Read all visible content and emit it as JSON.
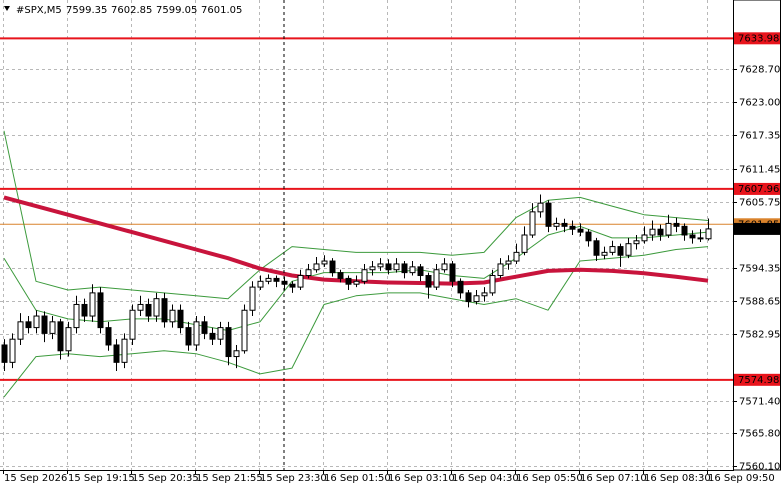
{
  "header": {
    "symbol": "#SPX,M5",
    "ohlc": [
      7599.35,
      7602.85,
      7599.05,
      7601.05
    ]
  },
  "chart_data": {
    "type": "candlestick",
    "categories": [
      "15 Sep 2026",
      null,
      null,
      null,
      null,
      null,
      null,
      null,
      "15 Sep 19:15",
      null,
      null,
      null,
      null,
      null,
      null,
      null,
      "15 Sep 20:35",
      null,
      null,
      null,
      null,
      null,
      null,
      null,
      "15 Sep 21:55",
      null,
      null,
      null,
      null,
      null,
      null,
      null,
      "15 Sep 23:30",
      null,
      null,
      null,
      null,
      null,
      null,
      null,
      "16 Sep 01:50",
      null,
      null,
      null,
      null,
      null,
      null,
      null,
      "16 Sep 03:10",
      null,
      null,
      null,
      null,
      null,
      null,
      null,
      "16 Sep 04:30",
      null,
      null,
      null,
      null,
      null,
      null,
      null,
      "16 Sep 05:50",
      null,
      null,
      null,
      null,
      null,
      null,
      null,
      "16 Sep 07:10",
      null,
      null,
      null,
      null,
      null,
      null,
      null,
      "16 Sep 08:30",
      null,
      null,
      null,
      null,
      null,
      null,
      null,
      "16 Sep 09:50"
    ],
    "candles": [
      [
        7581,
        7582,
        7576.5,
        7578
      ],
      [
        7578,
        7583,
        7577,
        7582
      ],
      [
        7582,
        7586.5,
        7581,
        7585
      ],
      [
        7585,
        7586,
        7583,
        7584
      ],
      [
        7584,
        7587,
        7583,
        7586
      ],
      [
        7586,
        7586.8,
        7581.5,
        7583
      ],
      [
        7583,
        7586,
        7582,
        7585
      ],
      [
        7585,
        7585.5,
        7578.5,
        7580
      ],
      [
        7580,
        7585,
        7579,
        7584
      ],
      [
        7584,
        7589.5,
        7583,
        7588
      ],
      [
        7588,
        7589,
        7585,
        7586
      ],
      [
        7586,
        7591.5,
        7585,
        7590
      ],
      [
        7590,
        7591,
        7583,
        7584
      ],
      [
        7584,
        7585,
        7580,
        7581
      ],
      [
        7581,
        7582,
        7576.5,
        7578
      ],
      [
        7578,
        7583,
        7577,
        7582
      ],
      [
        7582,
        7588,
        7581,
        7587
      ],
      [
        7587,
        7589.5,
        7586,
        7588
      ],
      [
        7588,
        7589,
        7585,
        7586
      ],
      [
        7586,
        7590,
        7585,
        7589
      ],
      [
        7589,
        7590,
        7584,
        7585
      ],
      [
        7585,
        7588,
        7584,
        7587
      ],
      [
        7587,
        7588,
        7583,
        7584
      ],
      [
        7584,
        7585,
        7580,
        7581
      ],
      [
        7581,
        7586,
        7580,
        7585
      ],
      [
        7585,
        7586,
        7582,
        7583
      ],
      [
        7583,
        7584,
        7581,
        7582
      ],
      [
        7582,
        7585,
        7581,
        7584
      ],
      [
        7584,
        7585,
        7577.5,
        7579
      ],
      [
        7579,
        7581,
        7577,
        7580
      ],
      [
        7580,
        7588,
        7579.5,
        7587
      ],
      [
        7587,
        7592,
        7586,
        7591
      ],
      [
        7591,
        7593,
        7590.5,
        7592
      ],
      [
        7592,
        7593.2,
        7591.5,
        7592.5
      ],
      [
        7592.5,
        7593,
        7591,
        7592
      ],
      [
        7592,
        7592.8,
        7590.5,
        7591.5
      ],
      [
        7591.5,
        7592,
        7590,
        7591
      ],
      [
        7591,
        7594,
        7590.5,
        7593
      ],
      [
        7593,
        7595,
        7592.5,
        7594
      ],
      [
        7594,
        7596.2,
        7593.5,
        7595
      ],
      [
        7595,
        7596.5,
        7594.5,
        7595.5
      ],
      [
        7595.5,
        7596,
        7592.8,
        7593.5
      ],
      [
        7593.5,
        7594,
        7591.8,
        7592.5
      ],
      [
        7592.5,
        7593,
        7590.5,
        7591.5
      ],
      [
        7591.5,
        7593,
        7591,
        7592
      ],
      [
        7592,
        7595,
        7591.5,
        7594
      ],
      [
        7594,
        7595.5,
        7593,
        7594.5
      ],
      [
        7594.5,
        7596,
        7593.8,
        7595
      ],
      [
        7595,
        7595.8,
        7593.2,
        7594
      ],
      [
        7594,
        7596,
        7593.5,
        7595
      ],
      [
        7595,
        7595.5,
        7592.5,
        7593.5
      ],
      [
        7593.5,
        7595.5,
        7593,
        7594.5
      ],
      [
        7594.5,
        7595,
        7592,
        7593
      ],
      [
        7593,
        7593.5,
        7589,
        7591
      ],
      [
        7591,
        7595,
        7590.5,
        7594
      ],
      [
        7594,
        7596,
        7593.5,
        7595
      ],
      [
        7595,
        7595.5,
        7591,
        7592
      ],
      [
        7592,
        7592.5,
        7589,
        7590
      ],
      [
        7590,
        7590.5,
        7587.5,
        7588.5
      ],
      [
        7588.5,
        7590.5,
        7588,
        7589.5
      ],
      [
        7589.5,
        7591,
        7588.5,
        7590
      ],
      [
        7590,
        7594,
        7589.5,
        7593
      ],
      [
        7593,
        7596,
        7592.5,
        7595
      ],
      [
        7595,
        7596.5,
        7594,
        7595.5
      ],
      [
        7595.5,
        7598.5,
        7595,
        7597
      ],
      [
        7597,
        7601.5,
        7596.5,
        7600
      ],
      [
        7600,
        7605.5,
        7599.5,
        7604
      ],
      [
        7604,
        7607,
        7603,
        7605.5
      ],
      [
        7605.5,
        7606,
        7600.5,
        7601.5
      ],
      [
        7601.5,
        7603,
        7600.8,
        7602
      ],
      [
        7602,
        7602.8,
        7600.5,
        7601.5
      ],
      [
        7601.5,
        7602.5,
        7600,
        7601
      ],
      [
        7601,
        7602,
        7599.8,
        7600.5
      ],
      [
        7600.5,
        7601,
        7598,
        7599
      ],
      [
        7599,
        7599.5,
        7595.5,
        7596.5
      ],
      [
        7596.5,
        7598,
        7595.8,
        7597
      ],
      [
        7597,
        7599,
        7596.5,
        7598
      ],
      [
        7598,
        7598.5,
        7594.5,
        7596.5
      ],
      [
        7596.5,
        7599.5,
        7596,
        7598.5
      ],
      [
        7598.5,
        7600,
        7597.5,
        7599
      ],
      [
        7599,
        7601.5,
        7598.5,
        7600
      ],
      [
        7600,
        7602.5,
        7599,
        7601
      ],
      [
        7601,
        7601.8,
        7599,
        7600
      ],
      [
        7600,
        7603.5,
        7599.5,
        7602
      ],
      [
        7602,
        7603,
        7600.5,
        7601.5
      ],
      [
        7601.5,
        7602,
        7599,
        7600
      ],
      [
        7600,
        7600.8,
        7598.5,
        7599.5
      ],
      [
        7599.5,
        7601,
        7598.8,
        7599.35
      ],
      [
        7599.35,
        7602.85,
        7599.05,
        7601.05
      ]
    ],
    "overlay_x": [
      0,
      4,
      8,
      12,
      16,
      20,
      24,
      28,
      32,
      36,
      40,
      44,
      48,
      52,
      56,
      60,
      64,
      68,
      72,
      76,
      80,
      84,
      88
    ],
    "overlays": [
      {
        "color": "#3c9a3c",
        "width": 1,
        "values": [
          7618,
          7592,
          7590.5,
          7591,
          7590.5,
          7590,
          7589.5,
          7589,
          7594,
          7598,
          7597.5,
          7597,
          7597,
          7597,
          7596.5,
          7597,
          7603,
          7606,
          7606.5,
          7605,
          7603.5,
          7603,
          7602.5
        ]
      },
      {
        "color": "#3c9a3c",
        "width": 1,
        "values": [
          7596,
          7587,
          7585.5,
          7585,
          7585.5,
          7585.5,
          7584.5,
          7583.5,
          7585,
          7592,
          7593.5,
          7593.5,
          7593.5,
          7594,
          7593,
          7592.5,
          7596,
          7600,
          7601.5,
          7599.5,
          7599.5,
          7600,
          7600.5
        ]
      },
      {
        "color": "#3c9a3c",
        "width": 1,
        "values": [
          7572,
          7579,
          7579.5,
          7579,
          7579.5,
          7580,
          7579.5,
          7578,
          7576,
          7577,
          7588,
          7589.5,
          7590,
          7590,
          7589,
          7588,
          7589,
          7587,
          7595.5,
          7596,
          7596.5,
          7597.5,
          7598
        ]
      },
      {
        "color": "#c8143c",
        "width": 4,
        "values": [
          7606.5,
          7605,
          7603.5,
          7602,
          7600.5,
          7599,
          7597.5,
          7596,
          7594.2,
          7593,
          7592.3,
          7592,
          7591.8,
          7591.7,
          7591.6,
          7591.8,
          7592.8,
          7593.8,
          7594,
          7593.8,
          7593.4,
          7592.8,
          7592.1
        ]
      }
    ],
    "levels": [
      7633.98,
      7607.96,
      7574.98
    ],
    "level_color": "#e8141c",
    "ask_price": 7601.85,
    "ask_color": "#d9822b",
    "last_price": 7601.05,
    "ylim": [
      7559.4,
      7640.6
    ],
    "yticks": [
      {
        "value": 7628.7,
        "label": "7628.70"
      },
      {
        "value": 7623,
        "label": "7623.00"
      },
      7617.35,
      7611.45,
      7605.75,
      7594.35,
      7588.65,
      7582.95,
      {
        "value": 7571.4,
        "label": "7571.40"
      },
      {
        "value": 7565.8,
        "label": "7565.80"
      },
      {
        "value": 7560.1,
        "label": "7560.10"
      }
    ],
    "grid": true
  }
}
